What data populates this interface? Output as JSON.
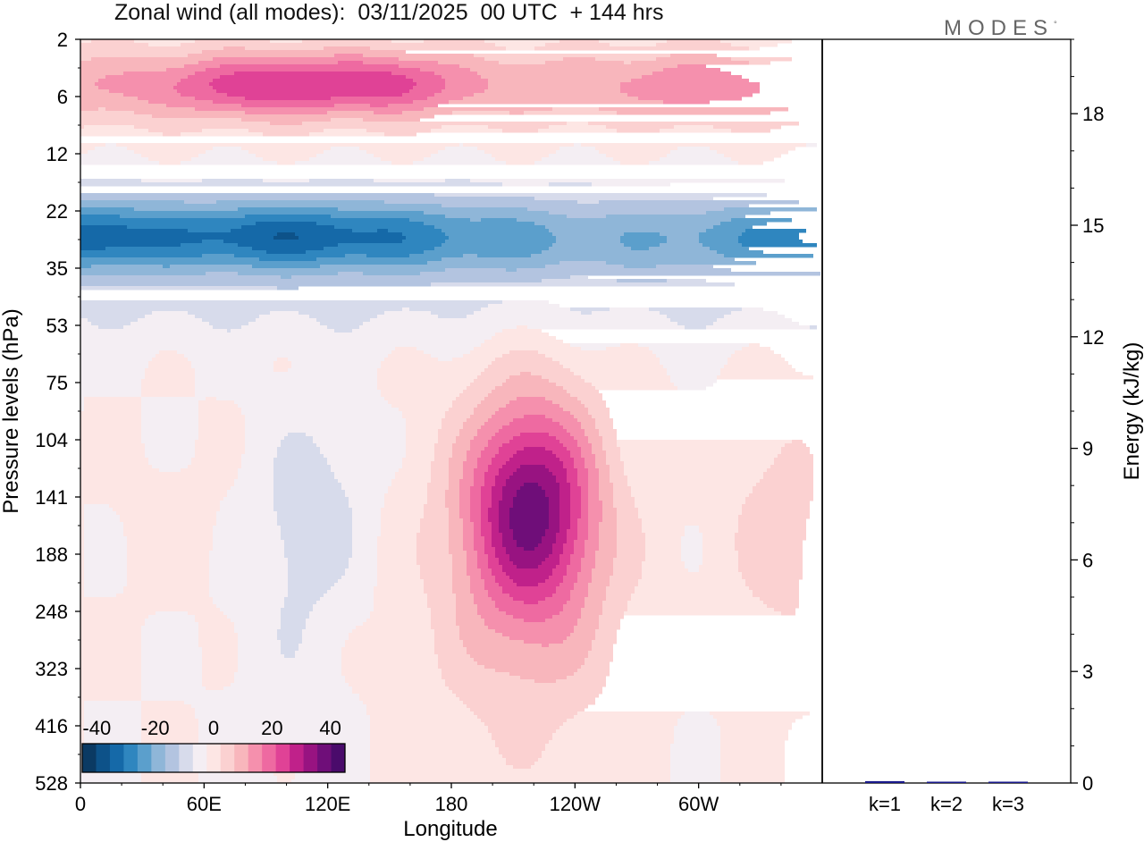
{
  "chart_data": {
    "type": "heatmap",
    "title": "Zonal wind (all modes):  03/11/2025  00 UTC  + 144 hrs",
    "xlabel": "Longitude",
    "ylabel": "Pressure levels (hPa)",
    "x_ticks": [
      "0",
      "60E",
      "120E",
      "180",
      "120W",
      "60W"
    ],
    "y_ticks": [
      "2",
      "6",
      "12",
      "22",
      "35",
      "53",
      "75",
      "104",
      "141",
      "188",
      "248",
      "323",
      "416",
      "528"
    ],
    "colorbar": {
      "range": [
        -45,
        45
      ],
      "step": 5,
      "tick_labels": [
        "-40",
        "-20",
        "0",
        "20",
        "40"
      ],
      "colors": [
        "#0b3a63",
        "#0d5289",
        "#1569a8",
        "#2f86bf",
        "#5b9fcc",
        "#8fb6d8",
        "#b3c4e0",
        "#d7dbeb",
        "#f4eef3",
        "#fde6e4",
        "#fbd1d1",
        "#f8b6bc",
        "#f590ad",
        "#ee6aa1",
        "#e04296",
        "#c0218a",
        "#981381",
        "#6f0e79",
        "#4a0b6b"
      ]
    },
    "field_description_note": "Negative (blue) easterly band near 15-40 hPa; positive (pink) maxima near 6 hPa and around 140 hPa near 150W.",
    "energy_panel": {
      "ylabel": "Energy (kJ/kg)",
      "ylim": [
        0,
        20
      ],
      "y_ticks": [
        "0",
        "3",
        "6",
        "9",
        "12",
        "15",
        "18"
      ],
      "categories": [
        "k=1",
        "k=2",
        "k=3"
      ],
      "values": [
        0.05,
        0.03,
        0.02
      ],
      "bar_color": "#1a1a8c"
    }
  },
  "logo_text": "MODES",
  "logo_mark": "°"
}
